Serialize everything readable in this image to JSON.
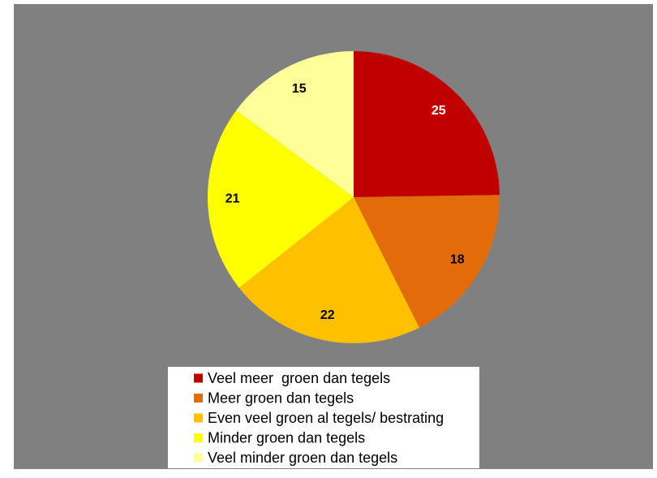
{
  "chart_data": {
    "type": "pie",
    "categories": [
      "Veel meer  groen dan tegels",
      "Meer groen dan tegels",
      "Even veel groen al tegels/ bestrating",
      "Minder groen dan tegels",
      "Veel minder groen dan tegels"
    ],
    "values": [
      25,
      18,
      22,
      21,
      15
    ],
    "colors": [
      "#c00000",
      "#e36c0a",
      "#ffc000",
      "#ffff00",
      "#ffff99"
    ],
    "label_colors": [
      "#ffffff",
      "#000000",
      "#000000",
      "#000000",
      "#000000"
    ]
  }
}
